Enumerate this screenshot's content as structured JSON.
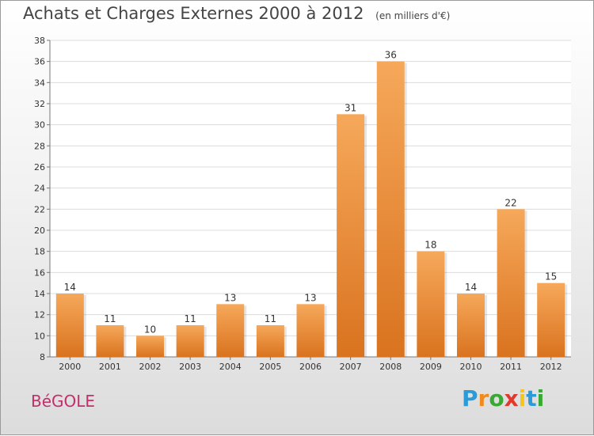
{
  "chart_data": {
    "type": "bar",
    "title": "Achats et Charges Externes 2000 à 2012",
    "unit_note": "(en milliers d'€)",
    "categories": [
      "2000",
      "2001",
      "2002",
      "2003",
      "2004",
      "2005",
      "2006",
      "2007",
      "2008",
      "2009",
      "2010",
      "2011",
      "2012"
    ],
    "values": [
      14,
      11,
      10,
      11,
      13,
      11,
      13,
      31,
      36,
      18,
      14,
      22,
      15
    ],
    "ylim": [
      8,
      38
    ],
    "yticks": [
      8,
      10,
      12,
      14,
      16,
      18,
      20,
      22,
      24,
      26,
      28,
      30,
      32,
      34,
      36,
      38
    ],
    "xlabel": "",
    "ylabel": "",
    "grid": true,
    "bar_color_top": "#f6a85a",
    "bar_color_bottom": "#d9731f"
  },
  "footer": {
    "place_name": "BéGOLE",
    "logo_letters": [
      "P",
      "r",
      "o",
      "x",
      "i",
      "t",
      "i"
    ],
    "logo_colors": [
      "#2a9bd8",
      "#f08a1c",
      "#3aa835",
      "#e03a2e",
      "#f5c518",
      "#2a9bd8",
      "#3aa835"
    ]
  }
}
